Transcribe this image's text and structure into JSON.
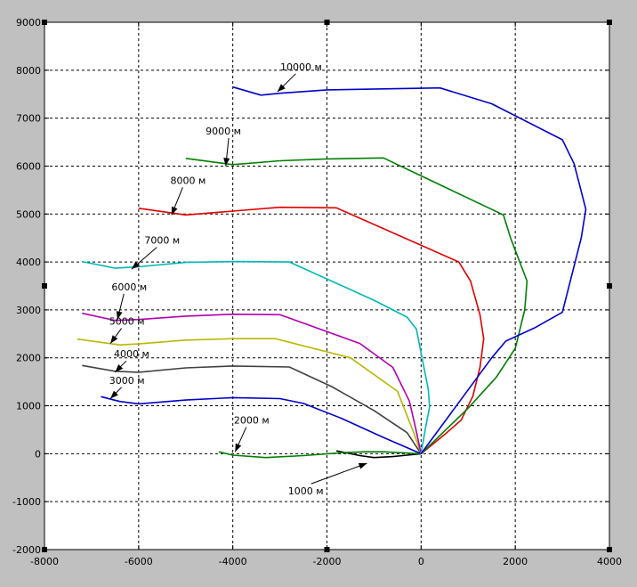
{
  "chart_data": {
    "type": "line",
    "xlim": [
      -8000,
      4000
    ],
    "ylim": [
      -2000,
      9000
    ],
    "x_ticks": [
      -8000,
      -6000,
      -4000,
      -2000,
      0,
      2000,
      4000
    ],
    "y_ticks": [
      -2000,
      -1000,
      0,
      1000,
      2000,
      3000,
      4000,
      5000,
      6000,
      7000,
      8000,
      9000
    ],
    "x_tick_labels": [
      "-8000",
      "-6000",
      "-4000",
      "-2000",
      "0",
      "2000",
      "4000"
    ],
    "y_tick_labels": [
      "-2000",
      "-1000",
      "0",
      "1000",
      "2000",
      "3000",
      "4000",
      "5000",
      "6000",
      "7000",
      "8000",
      "9000"
    ],
    "grid": true,
    "series": [
      {
        "color": "#000000",
        "points": [
          [
            0,
            0
          ],
          [
            -300,
            -30
          ],
          [
            -600,
            -60
          ],
          [
            -1000,
            -80
          ],
          [
            -1300,
            -40
          ],
          [
            -1800,
            60
          ]
        ]
      },
      {
        "color": "#007f00",
        "points": [
          [
            0,
            0
          ],
          [
            -400,
            20
          ],
          [
            -800,
            40
          ],
          [
            -1200,
            40
          ],
          [
            -1700,
            20
          ],
          [
            -2500,
            -40
          ],
          [
            -3300,
            -80
          ],
          [
            -4000,
            -30
          ],
          [
            -4300,
            40
          ]
        ]
      },
      {
        "color": "#0000cc",
        "points": [
          [
            0,
            0
          ],
          [
            -800,
            340
          ],
          [
            -1700,
            740
          ],
          [
            -2500,
            1050
          ],
          [
            -3000,
            1150
          ],
          [
            -4000,
            1170
          ],
          [
            -5000,
            1120
          ],
          [
            -6000,
            1040
          ],
          [
            -6400,
            1090
          ],
          [
            -6800,
            1190
          ]
        ]
      },
      {
        "color": "#404040",
        "points": [
          [
            0,
            0
          ],
          [
            -300,
            440
          ],
          [
            -1000,
            900
          ],
          [
            -1900,
            1400
          ],
          [
            -2800,
            1810
          ],
          [
            -4000,
            1830
          ],
          [
            -5000,
            1790
          ],
          [
            -6000,
            1700
          ],
          [
            -6500,
            1720
          ],
          [
            -7200,
            1840
          ]
        ]
      },
      {
        "color": "#b8b800",
        "points": [
          [
            0,
            0
          ],
          [
            -150,
            420
          ],
          [
            -500,
            1300
          ],
          [
            -1500,
            2000
          ],
          [
            -3100,
            2400
          ],
          [
            -4000,
            2400
          ],
          [
            -5000,
            2370
          ],
          [
            -6000,
            2290
          ],
          [
            -6400,
            2270
          ],
          [
            -7300,
            2390
          ]
        ]
      },
      {
        "color": "#b000b0",
        "points": [
          [
            0,
            0
          ],
          [
            -120,
            550
          ],
          [
            -250,
            1100
          ],
          [
            -600,
            1800
          ],
          [
            -1300,
            2300
          ],
          [
            -3000,
            2900
          ],
          [
            -4000,
            2910
          ],
          [
            -5000,
            2870
          ],
          [
            -6000,
            2800
          ],
          [
            -6500,
            2780
          ],
          [
            -7200,
            2930
          ]
        ]
      },
      {
        "color": "#00b8b8",
        "points": [
          [
            0,
            0
          ],
          [
            90,
            520
          ],
          [
            180,
            980
          ],
          [
            150,
            1350
          ],
          [
            60,
            1800
          ],
          [
            -100,
            2600
          ],
          [
            -300,
            2850
          ],
          [
            -1000,
            3200
          ],
          [
            -2800,
            4000
          ],
          [
            -4000,
            4010
          ],
          [
            -5000,
            3990
          ],
          [
            -6000,
            3900
          ],
          [
            -6500,
            3870
          ],
          [
            -7200,
            4010
          ]
        ]
      },
      {
        "color": "#e00000",
        "points": [
          [
            0,
            0
          ],
          [
            500,
            400
          ],
          [
            850,
            700
          ],
          [
            1100,
            1200
          ],
          [
            1250,
            1800
          ],
          [
            1330,
            2400
          ],
          [
            1250,
            2900
          ],
          [
            1050,
            3600
          ],
          [
            800,
            4000
          ],
          [
            -1800,
            5130
          ],
          [
            -3000,
            5140
          ],
          [
            -4000,
            5060
          ],
          [
            -5000,
            4980
          ],
          [
            -6000,
            5120
          ]
        ]
      },
      {
        "color": "#007f00",
        "points": [
          [
            0,
            0
          ],
          [
            1000,
            950
          ],
          [
            1600,
            1600
          ],
          [
            2000,
            2200
          ],
          [
            2200,
            3000
          ],
          [
            2250,
            3600
          ],
          [
            1900,
            4500
          ],
          [
            1750,
            4980
          ],
          [
            -800,
            6170
          ],
          [
            -2000,
            6150
          ],
          [
            -3000,
            6110
          ],
          [
            -4000,
            6030
          ],
          [
            -5000,
            6160
          ]
        ]
      },
      {
        "color": "#0000cc",
        "points": [
          [
            0,
            0
          ],
          [
            1500,
            2000
          ],
          [
            1800,
            2350
          ],
          [
            2400,
            2620
          ],
          [
            3000,
            2950
          ],
          [
            3400,
            4500
          ],
          [
            3500,
            5100
          ],
          [
            3250,
            6050
          ],
          [
            3000,
            6550
          ],
          [
            1500,
            7300
          ],
          [
            400,
            7630
          ],
          [
            -2000,
            7590
          ],
          [
            -3000,
            7520
          ],
          [
            -3400,
            7480
          ],
          [
            -4000,
            7650
          ]
        ]
      }
    ],
    "annotations": [
      {
        "text": "1000 м",
        "x": -2450,
        "y": -850,
        "ax": -1150,
        "ay": -200
      },
      {
        "text": "2000 м",
        "x": -3600,
        "y": 630,
        "ax": -3950,
        "ay": 40
      },
      {
        "text": "3000 м",
        "x": -6250,
        "y": 1460,
        "ax": -6600,
        "ay": 1150
      },
      {
        "text": "4000 м",
        "x": -6150,
        "y": 2010,
        "ax": -6500,
        "ay": 1700
      },
      {
        "text": "5000 м",
        "x": -6250,
        "y": 2690,
        "ax": -6600,
        "ay": 2300
      },
      {
        "text": "6000 м",
        "x": -6200,
        "y": 3410,
        "ax": -6450,
        "ay": 2800
      },
      {
        "text": "7000 м",
        "x": -5500,
        "y": 4380,
        "ax": -6150,
        "ay": 3850
      },
      {
        "text": "8000 м",
        "x": -4950,
        "y": 5630,
        "ax": -5300,
        "ay": 4980
      },
      {
        "text": "9000 м",
        "x": -4200,
        "y": 6660,
        "ax": -4150,
        "ay": 6000
      },
      {
        "text": "10000 м",
        "x": -2550,
        "y": 8000,
        "ax": -3050,
        "ay": 7550
      }
    ]
  }
}
